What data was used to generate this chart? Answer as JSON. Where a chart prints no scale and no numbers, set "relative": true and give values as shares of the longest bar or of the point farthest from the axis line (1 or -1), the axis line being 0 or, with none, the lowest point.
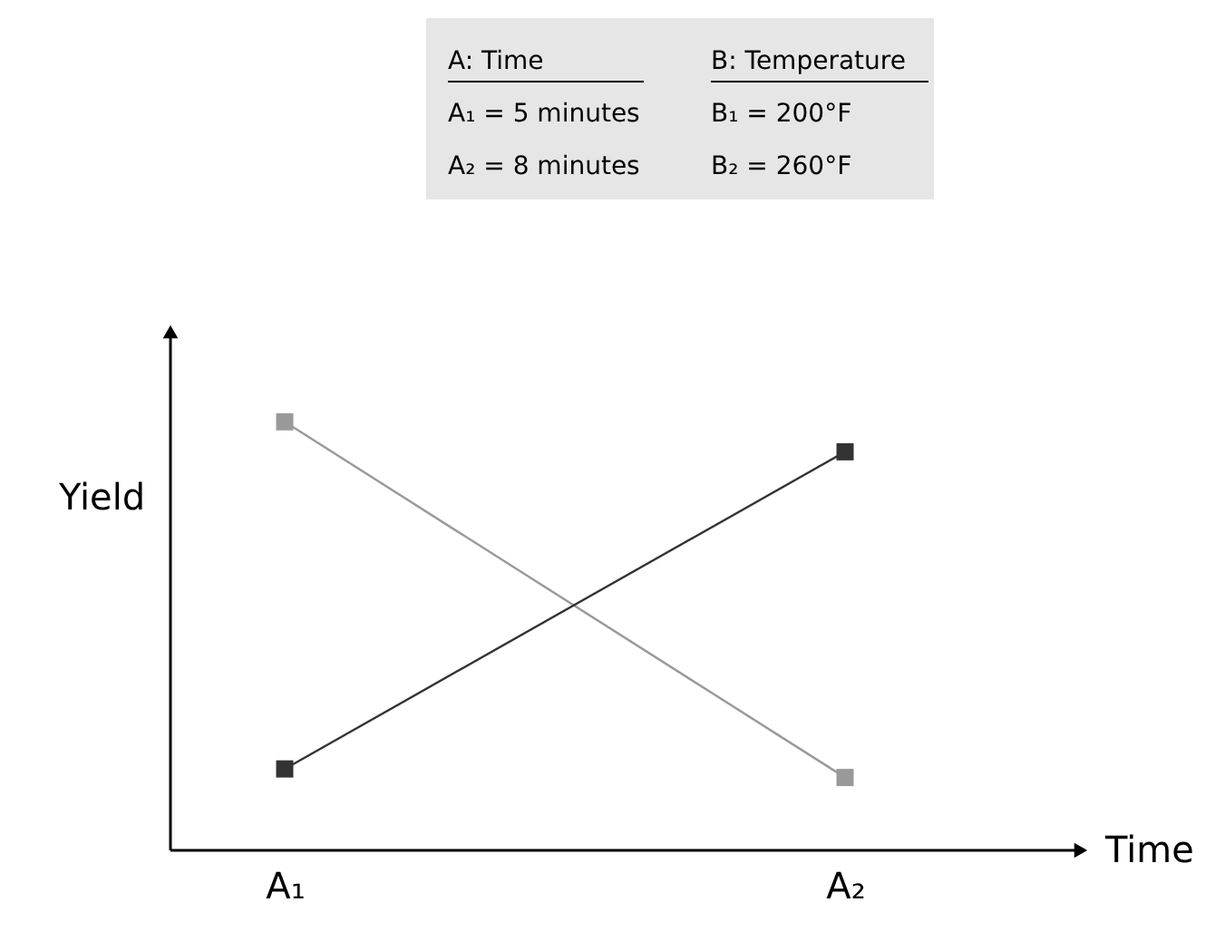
{
  "chart_data": {
    "type": "line",
    "relative": true,
    "categories": [
      "A₁",
      "A₂"
    ],
    "xlabel": "Time",
    "ylabel": "Yield",
    "series": [
      {
        "color": "#999999",
        "values": [
          1,
          0.17
        ]
      },
      {
        "color": "#333333",
        "values": [
          0.19,
          0.93
        ]
      }
    ],
    "marker": "square",
    "line_style": "solid",
    "grid": false,
    "annotations": [
      "A: Time",
      "B: Temperature",
      "A₁ = 5 minutes",
      "B₁ = 200°F",
      "A₂ = 8 minutes",
      "B₂ = 260°F"
    ]
  }
}
